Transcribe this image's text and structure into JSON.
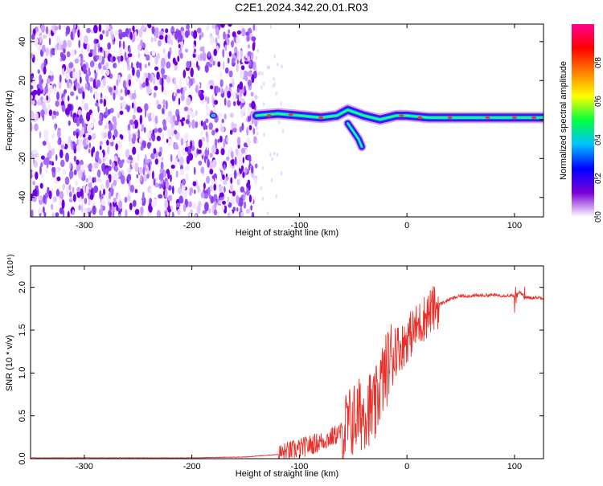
{
  "title": "C2E1.2024.342.20.01.R03",
  "colors": {
    "line": "#e8302a",
    "background": "#ffffff"
  },
  "chart_data": [
    {
      "type": "heatmap",
      "xlabel": "Height of straight line (km)",
      "ylabel": "Frequency (Hz)",
      "xlim": [
        -350,
        127
      ],
      "ylim": [
        -50,
        49
      ],
      "x_ticks": [
        -300,
        -200,
        -100,
        0,
        100
      ],
      "y_ticks": [
        -40,
        -20,
        0,
        20,
        40
      ],
      "colorbar": {
        "label": "Normalized spectral amplitude",
        "range": [
          0,
          1
        ],
        "ticks": [
          "0.0",
          "0.2",
          "0.4",
          "0.6",
          "0.8"
        ],
        "colors": [
          "#ffffff",
          "#7a00d9",
          "#0000ff",
          "#00c0ff",
          "#00ff40",
          "#ffff00",
          "#ff8000",
          "#ff0000",
          "#ff0090"
        ]
      },
      "noise_region_x": [
        -350,
        -140
      ],
      "ridge": [
        {
          "x": -140,
          "f": 2
        },
        {
          "x": -120,
          "f": 3
        },
        {
          "x": -100,
          "f": 2
        },
        {
          "x": -80,
          "f": 1
        },
        {
          "x": -65,
          "f": 2
        },
        {
          "x": -55,
          "f": 5
        },
        {
          "x": -40,
          "f": 2
        },
        {
          "x": -25,
          "f": 0
        },
        {
          "x": -10,
          "f": 2
        },
        {
          "x": 0,
          "f": 2
        },
        {
          "x": 20,
          "f": 1
        },
        {
          "x": 60,
          "f": 1
        },
        {
          "x": 127,
          "f": 1
        }
      ],
      "ridge_branch": [
        {
          "x": -55,
          "f": -2
        },
        {
          "x": -50,
          "f": -6
        },
        {
          "x": -45,
          "f": -10
        },
        {
          "x": -42,
          "f": -14
        }
      ]
    },
    {
      "type": "line",
      "xlabel": "Height of straight line (km)",
      "ylabel": "SNR (10 * v/v)",
      "yscale_label": "(x10⁴)",
      "xlim": [
        -350,
        127
      ],
      "ylim": [
        0,
        2.25
      ],
      "x_ticks": [
        -300,
        -200,
        -100,
        0,
        100
      ],
      "y_ticks": [
        "0.0",
        "0.5",
        "1.0",
        "1.5",
        "2.0"
      ],
      "series": [
        {
          "x": [
            -350,
            -300,
            -200,
            -150,
            -120,
            -100,
            -80,
            -70,
            -60,
            -50,
            -45,
            -40,
            -35,
            -30,
            -25,
            -20,
            -15,
            -10,
            -5,
            0,
            10,
            20,
            30,
            40,
            50,
            60,
            80,
            100,
            105,
            110,
            127
          ],
          "y": [
            0.01,
            0.01,
            0.01,
            0.02,
            0.05,
            0.12,
            0.2,
            0.25,
            0.32,
            0.45,
            0.5,
            0.55,
            0.6,
            0.55,
            0.85,
            1.0,
            1.2,
            1.3,
            1.3,
            1.4,
            1.55,
            1.7,
            1.8,
            1.86,
            1.9,
            1.9,
            1.91,
            1.9,
            1.95,
            1.88,
            1.88
          ]
        }
      ]
    }
  ]
}
